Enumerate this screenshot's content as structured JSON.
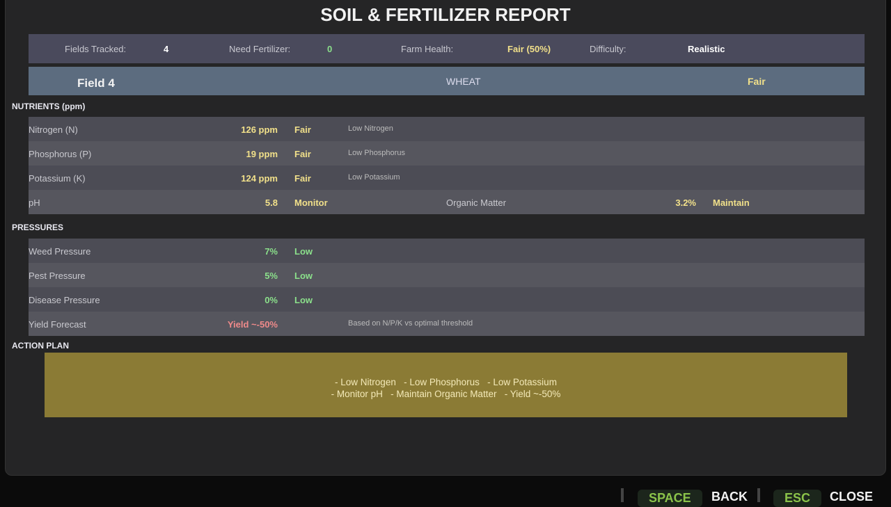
{
  "title": "SOIL & FERTILIZER REPORT",
  "stats": {
    "fields_tracked_label": "Fields Tracked:",
    "fields_tracked": "4",
    "need_fertilizer_label": "Need Fertilizer:",
    "need_fertilizer": "0",
    "farm_health_label": "Farm Health:",
    "farm_health": "Fair (50%)",
    "difficulty_label": "Difficulty:",
    "difficulty": "Realistic"
  },
  "field": {
    "name": "Field 4",
    "crop": "WHEAT",
    "status": "Fair"
  },
  "nutrients": {
    "heading": "NUTRIENTS (ppm)",
    "rows": [
      {
        "name": "Nitrogen (N)",
        "value": "126 ppm",
        "status": "Fair",
        "note": "Low Nitrogen"
      },
      {
        "name": "Phosphorus (P)",
        "value": "19 ppm",
        "status": "Fair",
        "note": "Low Phosphorus"
      },
      {
        "name": "Potassium (K)",
        "value": "124 ppm",
        "status": "Fair",
        "note": "Low Potassium"
      }
    ],
    "ph": {
      "name": "pH",
      "value": "5.8",
      "status": "Monitor",
      "om_label": "Organic Matter",
      "om_value": "3.2%",
      "om_status": "Maintain"
    }
  },
  "pressures": {
    "heading": "PRESSURES",
    "rows": [
      {
        "name": "Weed Pressure",
        "value": "7%",
        "status": "Low"
      },
      {
        "name": "Pest Pressure",
        "value": "5%",
        "status": "Low"
      },
      {
        "name": "Disease Pressure",
        "value": "0%",
        "status": "Low"
      }
    ],
    "yield": {
      "name": "Yield Forecast",
      "value": "Yield ~-50%",
      "note": "Based on N/P/K vs optimal threshold"
    }
  },
  "action_plan": {
    "heading": "ACTION PLAN",
    "line1": "- Low Nitrogen   - Low Phosphorus   - Low Potassium",
    "line2": "- Monitor pH   - Maintain Organic Matter   - Yield ~-50%"
  },
  "footer": {
    "back_key": "SPACE",
    "back_label": "BACK",
    "close_key": "ESC",
    "close_label": "CLOSE"
  }
}
